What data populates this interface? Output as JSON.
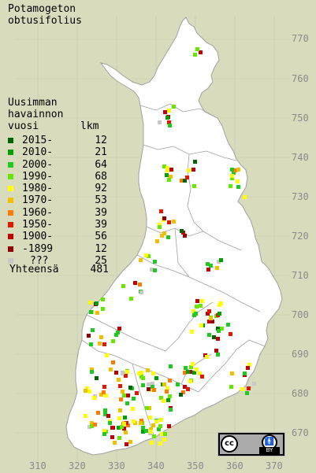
{
  "title_line1": "Potamogeton",
  "title_line2": "obtusifolius",
  "legend_title": [
    "Uusimman",
    "havainnon",
    "vuosi"
  ],
  "legend_count_header": "lkm",
  "legend": [
    {
      "label": "2015-",
      "count": "12",
      "color": "#006400"
    },
    {
      "label": "2010-",
      "count": "21",
      "color": "#00a000"
    },
    {
      "label": "2000-",
      "count": "64",
      "color": "#22c822"
    },
    {
      "label": "1990-",
      "count": "68",
      "color": "#66e600"
    },
    {
      "label": "1980-",
      "count": "92",
      "color": "#ffff00"
    },
    {
      "label": "1970-",
      "count": "53",
      "color": "#f0c000"
    },
    {
      "label": "1960-",
      "count": "39",
      "color": "#ff7a00"
    },
    {
      "label": "1950-",
      "count": "39",
      "color": "#e01800"
    },
    {
      "label": "1900-",
      "count": "56",
      "color": "#c00000"
    },
    {
      "label": "-1899",
      "count": "12",
      "color": "#900000"
    },
    {
      "label": "???",
      "count": "25",
      "color": "#c8c8c8"
    }
  ],
  "total_label": "Yhteensä",
  "total_count": "481",
  "y_ticks": [
    "770",
    "760",
    "750",
    "740",
    "730",
    "720",
    "710",
    "700",
    "690",
    "680",
    "670"
  ],
  "x_ticks": [
    "310",
    "320",
    "330",
    "340",
    "350",
    "360",
    "370"
  ],
  "license": {
    "cc": "cc",
    "by": "BY"
  },
  "map_colors": {
    "background": "#d8dcbc",
    "land": "#ffffff",
    "border": "#a0a0a0"
  }
}
